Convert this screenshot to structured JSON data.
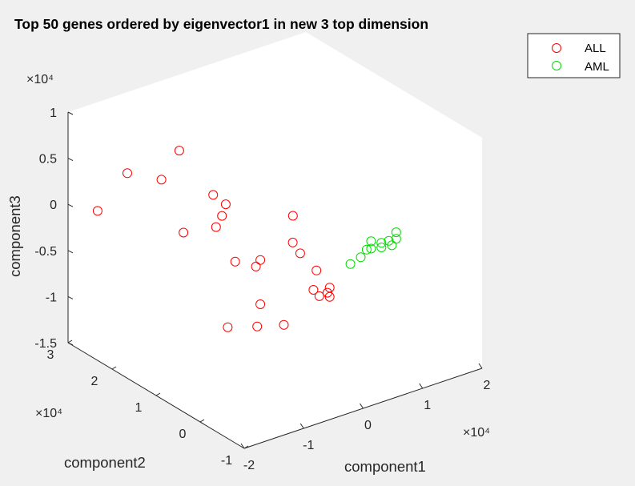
{
  "chart_data": {
    "type": "scatter",
    "title": "Top 50 genes ordered by eigenvector1 in new 3 top dimension",
    "xlabel": "component1",
    "ylabel": "component2",
    "zlabel": "component3",
    "x_multiplier": "×10⁴",
    "y_multiplier": "×10⁴",
    "z_multiplier": "×10⁴",
    "xlim": [
      -2,
      2
    ],
    "ylim": [
      -1,
      3
    ],
    "zlim": [
      -1.5,
      1
    ],
    "x_ticks": [
      "-2",
      "-1",
      "0",
      "1",
      "2"
    ],
    "y_ticks": [
      "-1",
      "0",
      "1",
      "2",
      "3"
    ],
    "z_ticks": [
      "-1.5",
      "-1",
      "-0.5",
      "0",
      "0.5",
      "1"
    ],
    "legend_position": "top-right",
    "series": [
      {
        "name": "ALL",
        "color": "#ff0000",
        "marker": "circle",
        "points": [
          [
            -0.5,
            2.5,
            0.4
          ],
          [
            -0.8,
            2.5,
            0.15
          ],
          [
            -1.3,
            2.6,
            0.3
          ],
          [
            -1.8,
            2.6,
            0.0
          ],
          [
            -0.3,
            2.0,
            0.02
          ],
          [
            -0.2,
            1.85,
            -0.06
          ],
          [
            -0.3,
            1.8,
            -0.15
          ],
          [
            -0.4,
            1.8,
            -0.25
          ],
          [
            -0.8,
            2.0,
            -0.28
          ],
          [
            0.3,
            1.0,
            -0.05
          ],
          [
            0.15,
            0.8,
            -0.25
          ],
          [
            0.2,
            0.7,
            -0.35
          ],
          [
            -0.1,
            1.2,
            -0.5
          ],
          [
            -0.3,
            1.5,
            -0.56
          ],
          [
            -0.1,
            1.3,
            -0.6
          ],
          [
            0.4,
            0.6,
            -0.55
          ],
          [
            0.2,
            0.4,
            -0.66
          ],
          [
            0.4,
            0.3,
            -0.65
          ],
          [
            0.4,
            0.35,
            -0.72
          ],
          [
            0.3,
            0.4,
            -0.75
          ],
          [
            0.4,
            0.3,
            -0.75
          ],
          [
            -0.1,
            1.2,
            -0.98
          ],
          [
            -0.3,
            1.0,
            -1.12
          ],
          [
            0.0,
            0.8,
            -1.11
          ],
          [
            -0.5,
            1.4,
            -1.2
          ]
        ]
      },
      {
        "name": "AML",
        "color": "#00dd00",
        "marker": "circle",
        "points": [
          [
            1.0,
            -0.4,
            0.02
          ],
          [
            1.0,
            -0.4,
            -0.05
          ],
          [
            0.95,
            -0.3,
            -0.09
          ],
          [
            1.0,
            -0.3,
            -0.15
          ],
          [
            0.9,
            -0.2,
            -0.13
          ],
          [
            0.8,
            -0.1,
            -0.12
          ],
          [
            0.9,
            -0.2,
            -0.18
          ],
          [
            0.8,
            -0.1,
            -0.2
          ],
          [
            0.8,
            0.0,
            -0.24
          ],
          [
            0.7,
            0.0,
            -0.3
          ],
          [
            0.6,
            0.1,
            -0.38
          ]
        ]
      }
    ]
  }
}
